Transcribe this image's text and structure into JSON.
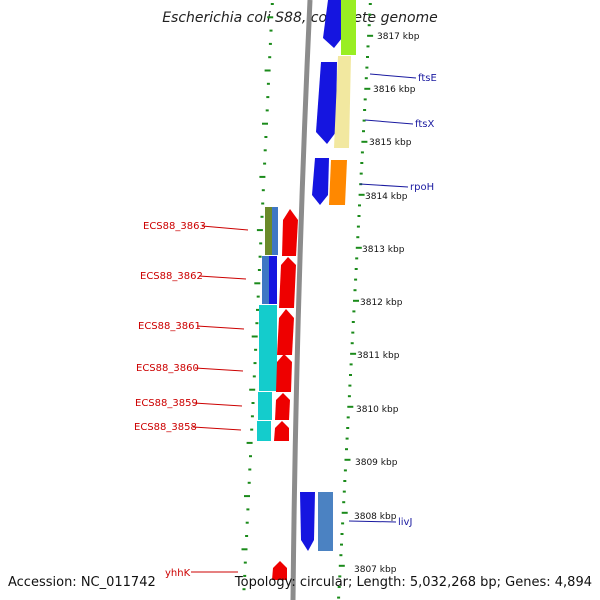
{
  "title": "Escherichia coli S88, complete genome",
  "accession": "Accession: NC_011742",
  "topology": "Topology: circular; Length: 5,032,268 bp; Genes: 4,894",
  "colors": {
    "backbone": "#8c8c8c",
    "tick_green": "#1a8a1a",
    "forward_gene": "#0000ee",
    "reverse_gene": "#ee0000",
    "label_red": "#cc0000",
    "label_blue": "#1a1aa0"
  },
  "kbp_labels": [
    "3817 kbp",
    "3816 kbp",
    "3815 kbp",
    "3814 kbp",
    "3813 kbp",
    "3812 kbp",
    "3811 kbp",
    "3810 kbp",
    "3809 kbp",
    "3808 kbp",
    "3807 kbp"
  ],
  "left_labels": [
    "ECS88_3863",
    "ECS88_3862",
    "ECS88_3861",
    "ECS88_3860",
    "ECS88_3859",
    "ECS88_3858",
    "yhhK"
  ],
  "right_labels": [
    "ftsE",
    "ftsX",
    "rpoH",
    "livJ"
  ]
}
